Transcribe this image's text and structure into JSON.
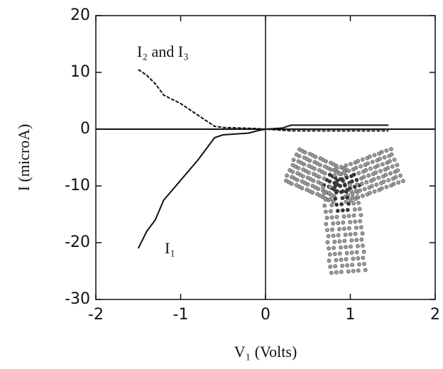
{
  "chart_data": {
    "type": "line",
    "x_label": "V₁ (Volts)",
    "y_label": "I (microA)",
    "xlim": [
      -2,
      2
    ],
    "ylim": [
      -30,
      20
    ],
    "xticks": [
      -2,
      -1,
      0,
      1,
      2
    ],
    "yticks": [
      -30,
      -20,
      -10,
      0,
      10,
      20
    ],
    "annotations": [
      "I₂ and I₃",
      "I₁"
    ],
    "series": [
      {
        "name": "I₁",
        "color": "#111111",
        "style": "solid",
        "x": [
          -1.5,
          -1.4,
          -1.3,
          -1.2,
          -1.0,
          -0.8,
          -0.7,
          -0.6,
          -0.5,
          -0.3,
          -0.2,
          -0.1,
          0,
          0.1,
          0.2,
          0.3,
          0.5,
          1.0,
          1.45
        ],
        "values": [
          -21,
          -18,
          -16,
          -12.5,
          -9,
          -5.5,
          -3.5,
          -1.5,
          -1,
          -0.8,
          -0.7,
          -0.3,
          0,
          0.1,
          0.2,
          0.7,
          0.7,
          0.7,
          0.7
        ]
      },
      {
        "name": "I₂ and I₃",
        "color": "#111111",
        "style": "dashed",
        "x": [
          -1.5,
          -1.4,
          -1.3,
          -1.2,
          -1.0,
          -0.8,
          -0.7,
          -0.6,
          -0.5,
          -0.3,
          -0.1,
          0,
          0.1,
          0.3,
          1.0,
          1.45
        ],
        "values": [
          10.5,
          9.5,
          8,
          6,
          4.5,
          2.5,
          1.5,
          0.5,
          0.3,
          0.2,
          0.1,
          0,
          -0.1,
          -0.3,
          -0.3,
          -0.3
        ]
      }
    ]
  }
}
